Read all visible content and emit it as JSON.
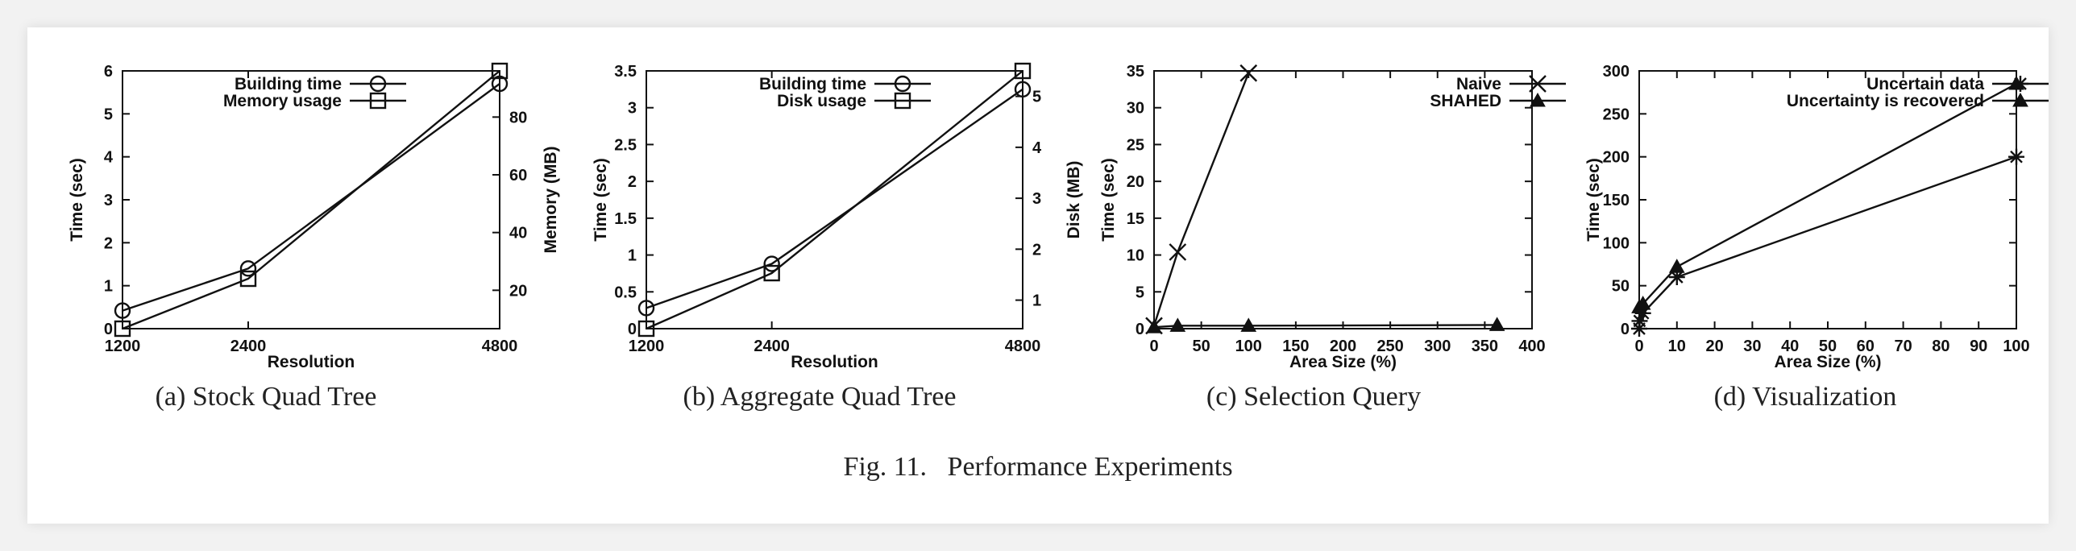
{
  "figure_caption": "Fig. 11.   Performance Experiments",
  "subcaptions": [
    "(a)  Stock Quad Tree",
    "(b)  Aggregate Quad Tree",
    "(c)  Selection Query",
    "(d)  Visualization"
  ],
  "chart_data": [
    {
      "type": "line",
      "xlabel": "Resolution",
      "ylabel": "Time (sec)",
      "y2label": "Memory (MB)",
      "x": [
        1200,
        2400,
        4800
      ],
      "xticks": [
        1200,
        2400,
        4800
      ],
      "ylim": [
        0,
        6
      ],
      "yticks": [
        0,
        1,
        2,
        3,
        4,
        5,
        6
      ],
      "y2lim": [
        6.7,
        96
      ],
      "y2ticks": [
        20,
        40,
        60,
        80
      ],
      "legend_position": "top-left",
      "grid": false,
      "series": [
        {
          "name": "Building time",
          "axis": "left",
          "marker": "circle",
          "values": [
            0.42,
            1.4,
            5.7
          ]
        },
        {
          "name": "Memory usage",
          "axis": "right",
          "marker": "square",
          "values": [
            6.7,
            24.0,
            96.0
          ]
        }
      ]
    },
    {
      "type": "line",
      "xlabel": "Resolution",
      "ylabel": "Time (sec)",
      "y2label": "Disk (MB)",
      "x": [
        1200,
        2400,
        4800
      ],
      "xticks": [
        1200,
        2400,
        4800
      ],
      "ylim": [
        0,
        3.5
      ],
      "yticks": [
        0,
        0.5,
        1,
        1.5,
        2,
        2.5,
        3,
        3.5
      ],
      "yticklabels": [
        "0",
        "0.5",
        "1",
        "1.5",
        "2",
        "2.5",
        "3",
        "3.5"
      ],
      "y2lim": [
        0.44,
        5.5
      ],
      "y2ticks": [
        1,
        2,
        3,
        4,
        5
      ],
      "legend_position": "top-left",
      "grid": false,
      "series": [
        {
          "name": "Building time",
          "axis": "left",
          "marker": "circle",
          "values": [
            0.28,
            0.88,
            3.25
          ]
        },
        {
          "name": "Disk usage",
          "axis": "right",
          "marker": "square",
          "values": [
            0.44,
            1.53,
            5.5
          ]
        }
      ]
    },
    {
      "type": "line",
      "xlabel": "Area Size (%)",
      "ylabel": "Time (sec)",
      "xlim": [
        0,
        400
      ],
      "xticks": [
        0,
        50,
        100,
        150,
        200,
        250,
        300,
        350,
        400
      ],
      "ylim": [
        0,
        35
      ],
      "yticks": [
        0,
        5,
        10,
        15,
        20,
        25,
        30,
        35
      ],
      "legend_position": "top-right",
      "grid": false,
      "series": [
        {
          "name": "Naive",
          "marker": "x",
          "x": [
            0,
            25,
            100
          ],
          "values": [
            0.4,
            10.4,
            34.7
          ]
        },
        {
          "name": "SHAHED",
          "marker": "triangle",
          "x": [
            0,
            25,
            100,
            363
          ],
          "values": [
            0.2,
            0.4,
            0.4,
            0.5
          ]
        }
      ]
    },
    {
      "type": "line",
      "xlabel": "Area Size (%)",
      "ylabel": "Time (sec)",
      "xlim": [
        0,
        100
      ],
      "xticks": [
        0,
        10,
        20,
        30,
        40,
        50,
        60,
        70,
        80,
        90,
        100
      ],
      "ylim": [
        0,
        300
      ],
      "yticks": [
        0,
        50,
        100,
        150,
        200,
        250,
        300
      ],
      "legend_position": "top-right",
      "grid": false,
      "series": [
        {
          "name": "Uncertain data",
          "marker": "star",
          "x": [
            0,
            0.1,
            1,
            10,
            100
          ],
          "values": [
            0,
            9,
            18,
            60,
            200
          ]
        },
        {
          "name": "Uncertainty is recovered",
          "marker": "triangle",
          "x": [
            0,
            1,
            10,
            100
          ],
          "values": [
            25,
            29,
            72,
            285
          ]
        }
      ]
    }
  ]
}
